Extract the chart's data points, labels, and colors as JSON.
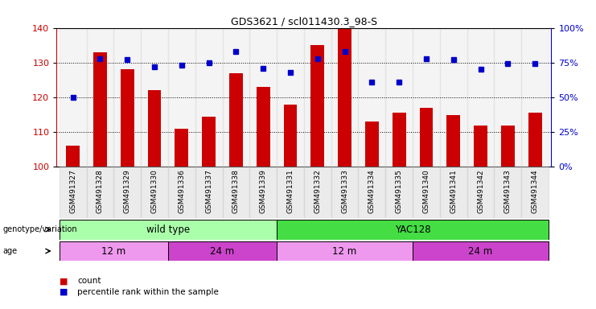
{
  "title": "GDS3621 / scl011430.3_98-S",
  "samples": [
    "GSM491327",
    "GSM491328",
    "GSM491329",
    "GSM491330",
    "GSM491336",
    "GSM491337",
    "GSM491338",
    "GSM491339",
    "GSM491331",
    "GSM491332",
    "GSM491333",
    "GSM491334",
    "GSM491335",
    "GSM491340",
    "GSM491341",
    "GSM491342",
    "GSM491343",
    "GSM491344"
  ],
  "counts_all": [
    106,
    133,
    128,
    122,
    111,
    114.5,
    127,
    123,
    118,
    135,
    140,
    113,
    115.5,
    117,
    115,
    112,
    112,
    115.5
  ],
  "percentiles_pct": [
    50,
    78,
    77,
    72,
    73,
    75,
    83,
    71,
    68,
    78,
    83,
    61,
    61,
    78,
    77,
    70,
    74,
    74
  ],
  "ylim_left": [
    100,
    140
  ],
  "ylim_right": [
    0,
    100
  ],
  "yticks_left": [
    100,
    110,
    120,
    130,
    140
  ],
  "yticks_right": [
    0,
    25,
    50,
    75,
    100
  ],
  "ytick_right_labels": [
    "0%",
    "25%",
    "50%",
    "75%",
    "100%"
  ],
  "bar_color": "#cc0000",
  "dot_color": "#0000cc",
  "bg_color": "#ffffff",
  "genotype_groups": [
    {
      "label": "wild type",
      "start": 0,
      "end": 8,
      "color": "#aaffaa"
    },
    {
      "label": "YAC128",
      "start": 8,
      "end": 18,
      "color": "#44dd44"
    }
  ],
  "age_groups": [
    {
      "label": "12 m",
      "start": 0,
      "end": 4,
      "color": "#ee99ee"
    },
    {
      "label": "24 m",
      "start": 4,
      "end": 8,
      "color": "#cc44cc"
    },
    {
      "label": "12 m",
      "start": 8,
      "end": 13,
      "color": "#ee99ee"
    },
    {
      "label": "24 m",
      "start": 13,
      "end": 18,
      "color": "#cc44cc"
    }
  ],
  "legend_count_label": "count",
  "legend_pct_label": "percentile rank within the sample",
  "bar_color_legend": "#cc0000",
  "dot_color_legend": "#0000cc",
  "row1_label": "genotype/variation",
  "row2_label": "age",
  "xlabel_color": "#cc0000",
  "ylabel_right_color": "#0000cc"
}
